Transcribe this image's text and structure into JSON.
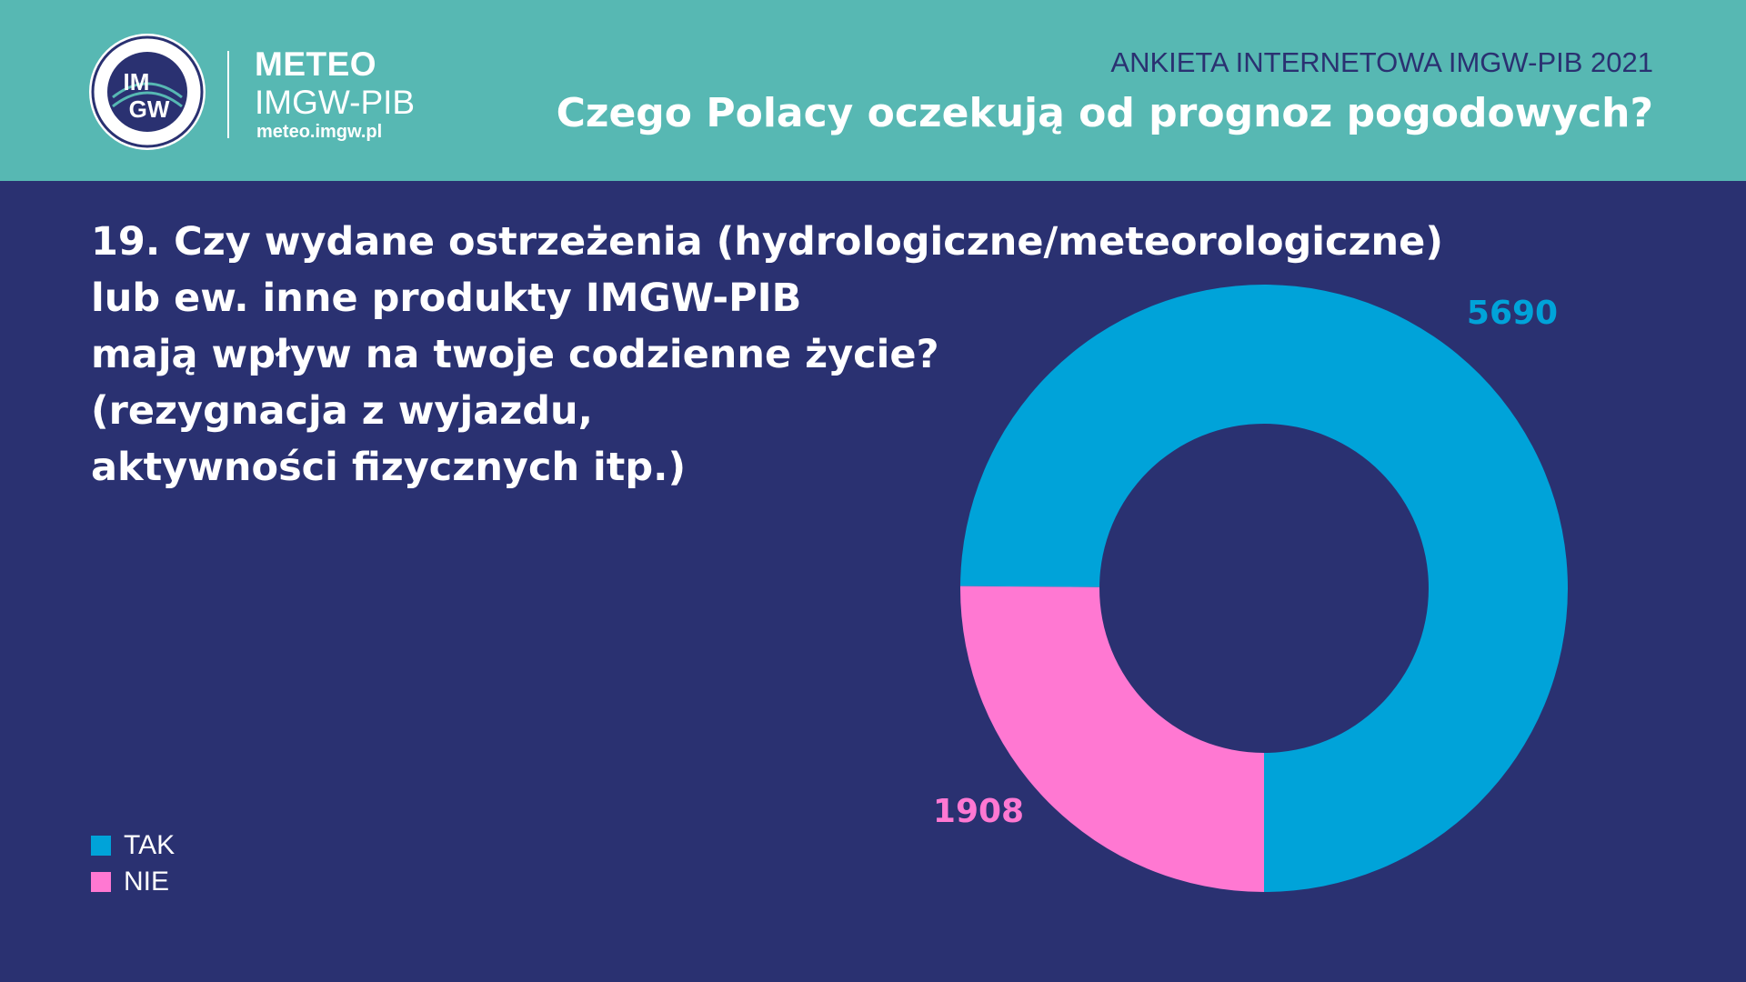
{
  "header": {
    "brand_name": "METEO",
    "brand_sub": "IMGW-PIB",
    "brand_url": "meteo.imgw.pl",
    "logo_text_top": "IM",
    "logo_text_bottom": "GW",
    "survey_label": "ANKIETA INTERNETOWA IMGW-PIB 2021",
    "title": "Czego Polacy oczekują od prognoz pogodowych?"
  },
  "question": {
    "lines": [
      "19. Czy wydane ostrzeżenia (hydrologiczne/meteorologiczne)",
      "lub ew. inne produkty IMGW-PIB",
      "mają wpływ na twoje codzienne życie?",
      "(rezygnacja z wyjazdu,",
      "aktywności fizycznych itp.)"
    ]
  },
  "colors": {
    "background": "#2a3171",
    "header": "#57b8b3",
    "tak": "#00a3d9",
    "nie": "#ff78d2"
  },
  "chart_data": {
    "type": "pie",
    "style": "donut",
    "categories": [
      "TAK",
      "NIE"
    ],
    "values": [
      5690,
      1908
    ],
    "data_labels": [
      "5690",
      "1908"
    ],
    "colors": [
      "#00a3d9",
      "#ff78d2"
    ],
    "legend": {
      "placement": "bottom-left",
      "entries": [
        "TAK",
        "NIE"
      ]
    }
  }
}
